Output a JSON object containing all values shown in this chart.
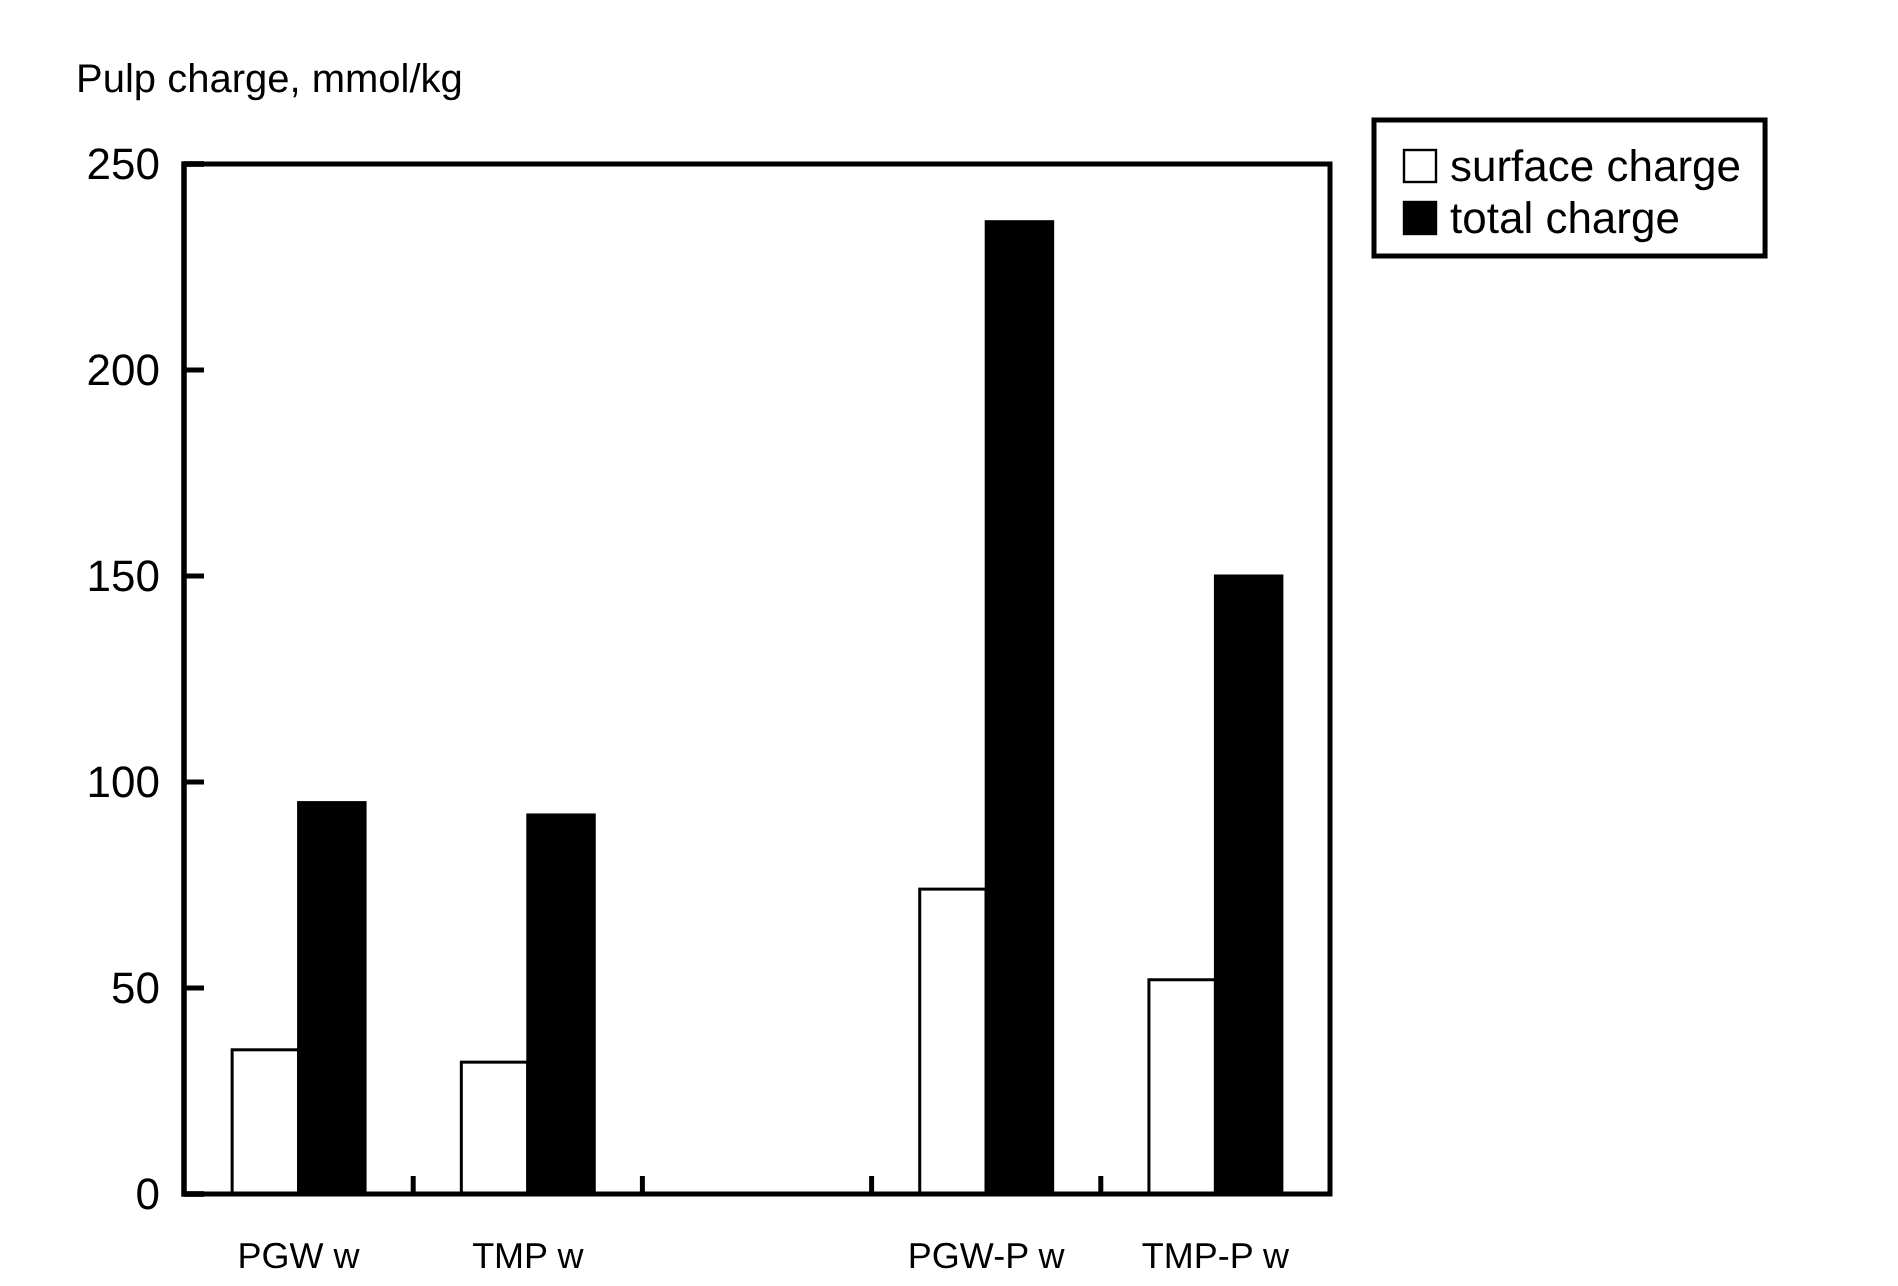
{
  "chart_data": {
    "type": "bar",
    "ylabel": "Pulp charge, mmol/kg",
    "categories": [
      "PGW w",
      "TMP w",
      null,
      "PGW-P w",
      "TMP-P w"
    ],
    "series": [
      {
        "name": "surface charge",
        "color": "#ffffff",
        "values": [
          35,
          32,
          null,
          74,
          52
        ]
      },
      {
        "name": "total charge",
        "color": "#000000",
        "values": [
          95,
          92,
          null,
          236,
          150
        ]
      }
    ],
    "ylim": [
      0,
      250
    ],
    "yticks": [
      0,
      50,
      100,
      150,
      200,
      250
    ],
    "grid": false,
    "legend": "top right"
  }
}
